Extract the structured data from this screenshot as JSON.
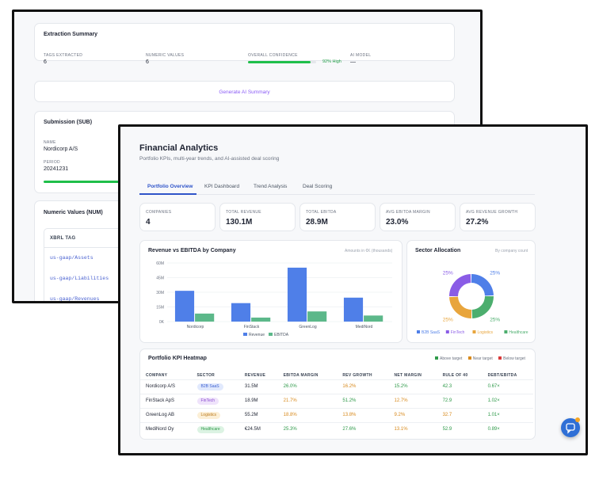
{
  "back": {
    "extraction": {
      "title": "Extraction Summary",
      "fields": [
        {
          "label": "TAGS EXTRACTED",
          "value": "6"
        },
        {
          "label": "NUMERIC VALUES",
          "value": "6"
        },
        {
          "label": "OVERALL CONFIDENCE",
          "value": "92% High",
          "progress": 0.92
        },
        {
          "label": "AI MODEL",
          "value": "—"
        }
      ]
    },
    "generate_label": "Generate AI Summary",
    "submission": {
      "title": "Submission (SUB)",
      "name_label": "NAME",
      "name_value": "Nordicorp A/S",
      "period_label": "PERIOD",
      "period_value": "20241231"
    },
    "numeric": {
      "title": "Numeric Values (NUM)",
      "col_header": "XBRL TAG",
      "rows": [
        "us-gaap/Assets",
        "us-gaap/Liabilities",
        "us-gaap/Revenues"
      ]
    }
  },
  "front": {
    "title": "Financial Analytics",
    "subtitle": "Portfolio KPIs, multi-year trends, and AI-assisted deal scoring",
    "tabs": [
      "Portfolio Overview",
      "KPI Dashboard",
      "Trend Analysis",
      "Deal Scoring"
    ],
    "kpis": [
      {
        "label": "COMPANIES",
        "value": "4"
      },
      {
        "label": "TOTAL REVENUE",
        "value": "130.1M"
      },
      {
        "label": "TOTAL EBITDA",
        "value": "28.9M"
      },
      {
        "label": "AVG EBITDA MARGIN",
        "value": "23.0%"
      },
      {
        "label": "AVG REVENUE GROWTH",
        "value": "27.2%"
      }
    ],
    "bar_card": {
      "title": "Revenue vs EBITDA by Company",
      "note": "Amounts in €K (thousands)"
    },
    "donut_card": {
      "title": "Sector Allocation",
      "note": "By company count"
    },
    "heatmap": {
      "title": "Portfolio KPI Heatmap",
      "legend": [
        "Above target",
        "Near target",
        "Below target"
      ],
      "headers": [
        "COMPANY",
        "SECTOR",
        "REVENUE",
        "EBITDA MARGIN",
        "REV GROWTH",
        "NET MARGIN",
        "RULE OF 40",
        "DEBT/EBITDA"
      ],
      "rows": [
        [
          "Nordicorp A/S",
          "B2B SaaS",
          "31.5M",
          "26.0%",
          "16.2%",
          "15.2%",
          "42.3",
          "0.67×"
        ],
        [
          "FinStack ApS",
          "FinTech",
          "18.9M",
          "21.7%",
          "51.2%",
          "12.7%",
          "72.9",
          "1.02×"
        ],
        [
          "GreenLog AB",
          "Logistics",
          "55.2M",
          "18.8%",
          "13.8%",
          "9.2%",
          "32.7",
          "1.01×"
        ],
        [
          "MediNord Oy",
          "Healthcare",
          "€24.5M",
          "25.3%",
          "27.6%",
          "13.1%",
          "52.9",
          "0.89×"
        ]
      ]
    }
  },
  "chart_data": [
    {
      "type": "bar",
      "categories": [
        "Nordicorp",
        "FinStack",
        "GreenLog",
        "MediNord"
      ],
      "series": [
        {
          "name": "Revenue",
          "values": [
            31.5,
            18.9,
            55.2,
            24.5
          ],
          "color": "#4f7fe8"
        },
        {
          "name": "EBITDA",
          "values": [
            8.2,
            4.1,
            10.4,
            6.2
          ],
          "color": "#5cb88a"
        }
      ],
      "ylim": [
        0,
        60
      ],
      "yticks": [
        "0K",
        "15M",
        "30M",
        "45M",
        "60M"
      ]
    },
    {
      "type": "pie",
      "labels": [
        "B2B SaaS",
        "FinTech",
        "Logistics",
        "Healthcare"
      ],
      "values": [
        25,
        25,
        25,
        25
      ],
      "colors": [
        "#4f7fe8",
        "#8a5ce6",
        "#e8a53c",
        "#4cae6e"
      ],
      "slice_labels": [
        "25%",
        "25%",
        "25%",
        "25%"
      ]
    }
  ]
}
